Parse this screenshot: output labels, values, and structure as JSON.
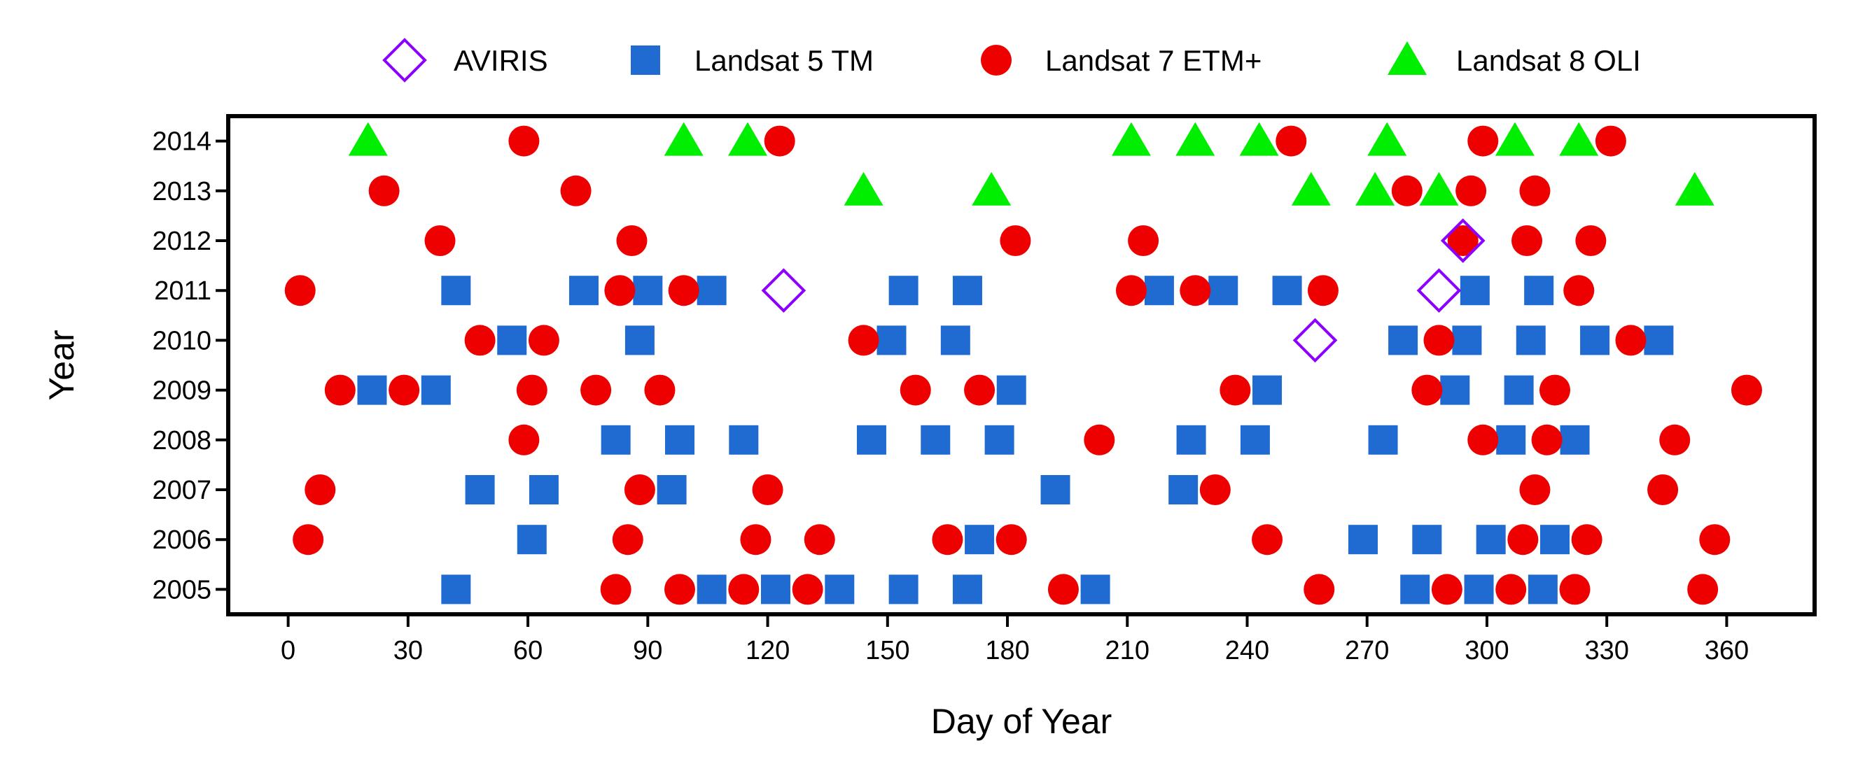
{
  "chart_data": {
    "type": "scatter",
    "title": "",
    "xlabel": "Day of Year",
    "ylabel": "Year",
    "xlim": [
      -15,
      382
    ],
    "ylim": [
      2004.5,
      2014.5
    ],
    "xticks": [
      0,
      30,
      60,
      90,
      120,
      150,
      180,
      210,
      240,
      270,
      300,
      330,
      360
    ],
    "yticks": [
      2005,
      2006,
      2007,
      2008,
      2009,
      2010,
      2011,
      2012,
      2013,
      2014
    ],
    "grid": false,
    "legend_position": "top",
    "series": [
      {
        "name": "AVIRIS",
        "marker": "diamond-open",
        "color": "#8B00FF",
        "points": [
          [
            124,
            2011
          ],
          [
            257,
            2010
          ],
          [
            288,
            2011
          ],
          [
            294,
            2012
          ]
        ]
      },
      {
        "name": "Landsat 5 TM",
        "marker": "square",
        "color": "#1F6BD1",
        "points": [
          [
            42,
            2011
          ],
          [
            74,
            2011
          ],
          [
            90,
            2011
          ],
          [
            106,
            2011
          ],
          [
            154,
            2011
          ],
          [
            170,
            2011
          ],
          [
            218,
            2011
          ],
          [
            234,
            2011
          ],
          [
            250,
            2011
          ],
          [
            297,
            2011
          ],
          [
            313,
            2011
          ],
          [
            56,
            2010
          ],
          [
            88,
            2010
          ],
          [
            151,
            2010
          ],
          [
            167,
            2010
          ],
          [
            279,
            2010
          ],
          [
            295,
            2010
          ],
          [
            311,
            2010
          ],
          [
            327,
            2010
          ],
          [
            343,
            2010
          ],
          [
            21,
            2009
          ],
          [
            37,
            2009
          ],
          [
            181,
            2009
          ],
          [
            245,
            2009
          ],
          [
            292,
            2009
          ],
          [
            308,
            2009
          ],
          [
            82,
            2008
          ],
          [
            98,
            2008
          ],
          [
            114,
            2008
          ],
          [
            146,
            2008
          ],
          [
            162,
            2008
          ],
          [
            178,
            2008
          ],
          [
            226,
            2008
          ],
          [
            242,
            2008
          ],
          [
            274,
            2008
          ],
          [
            306,
            2008
          ],
          [
            322,
            2008
          ],
          [
            48,
            2007
          ],
          [
            64,
            2007
          ],
          [
            96,
            2007
          ],
          [
            192,
            2007
          ],
          [
            224,
            2007
          ],
          [
            61,
            2006
          ],
          [
            173,
            2006
          ],
          [
            269,
            2006
          ],
          [
            285,
            2006
          ],
          [
            301,
            2006
          ],
          [
            317,
            2006
          ],
          [
            42,
            2005
          ],
          [
            106,
            2005
          ],
          [
            122,
            2005
          ],
          [
            138,
            2005
          ],
          [
            154,
            2005
          ],
          [
            170,
            2005
          ],
          [
            202,
            2005
          ],
          [
            282,
            2005
          ],
          [
            298,
            2005
          ],
          [
            314,
            2005
          ]
        ]
      },
      {
        "name": "Landsat 7 ETM+",
        "marker": "circle",
        "color": "#EE0000",
        "points": [
          [
            59,
            2014
          ],
          [
            123,
            2014
          ],
          [
            251,
            2014
          ],
          [
            299,
            2014
          ],
          [
            331,
            2014
          ],
          [
            24,
            2013
          ],
          [
            72,
            2013
          ],
          [
            280,
            2013
          ],
          [
            296,
            2013
          ],
          [
            312,
            2013
          ],
          [
            38,
            2012
          ],
          [
            86,
            2012
          ],
          [
            182,
            2012
          ],
          [
            214,
            2012
          ],
          [
            294,
            2012
          ],
          [
            310,
            2012
          ],
          [
            326,
            2012
          ],
          [
            3,
            2011
          ],
          [
            83,
            2011
          ],
          [
            99,
            2011
          ],
          [
            211,
            2011
          ],
          [
            227,
            2011
          ],
          [
            259,
            2011
          ],
          [
            323,
            2011
          ],
          [
            48,
            2010
          ],
          [
            64,
            2010
          ],
          [
            144,
            2010
          ],
          [
            288,
            2010
          ],
          [
            336,
            2010
          ],
          [
            13,
            2009
          ],
          [
            29,
            2009
          ],
          [
            61,
            2009
          ],
          [
            77,
            2009
          ],
          [
            93,
            2009
          ],
          [
            157,
            2009
          ],
          [
            173,
            2009
          ],
          [
            237,
            2009
          ],
          [
            285,
            2009
          ],
          [
            317,
            2009
          ],
          [
            365,
            2009
          ],
          [
            59,
            2008
          ],
          [
            203,
            2008
          ],
          [
            299,
            2008
          ],
          [
            315,
            2008
          ],
          [
            347,
            2008
          ],
          [
            8,
            2007
          ],
          [
            88,
            2007
          ],
          [
            120,
            2007
          ],
          [
            232,
            2007
          ],
          [
            312,
            2007
          ],
          [
            344,
            2007
          ],
          [
            5,
            2006
          ],
          [
            85,
            2006
          ],
          [
            117,
            2006
          ],
          [
            133,
            2006
          ],
          [
            165,
            2006
          ],
          [
            181,
            2006
          ],
          [
            245,
            2006
          ],
          [
            309,
            2006
          ],
          [
            325,
            2006
          ],
          [
            357,
            2006
          ],
          [
            82,
            2005
          ],
          [
            98,
            2005
          ],
          [
            114,
            2005
          ],
          [
            130,
            2005
          ],
          [
            194,
            2005
          ],
          [
            258,
            2005
          ],
          [
            290,
            2005
          ],
          [
            306,
            2005
          ],
          [
            322,
            2005
          ],
          [
            354,
            2005
          ]
        ]
      },
      {
        "name": "Landsat 8 OLI",
        "marker": "triangle",
        "color": "#00EE00",
        "points": [
          [
            20,
            2014
          ],
          [
            99,
            2014
          ],
          [
            115,
            2014
          ],
          [
            211,
            2014
          ],
          [
            227,
            2014
          ],
          [
            243,
            2014
          ],
          [
            275,
            2014
          ],
          [
            307,
            2014
          ],
          [
            323,
            2014
          ],
          [
            144,
            2013
          ],
          [
            176,
            2013
          ],
          [
            256,
            2013
          ],
          [
            272,
            2013
          ],
          [
            288,
            2013
          ],
          [
            352,
            2013
          ]
        ]
      }
    ]
  }
}
